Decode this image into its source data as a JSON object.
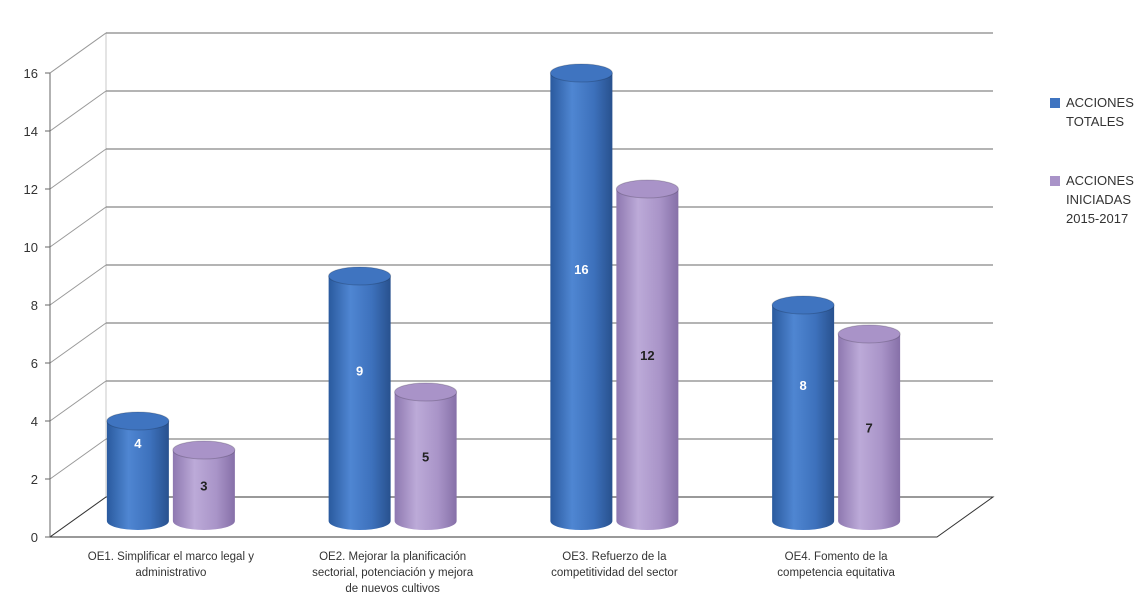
{
  "chart_data": {
    "type": "bar",
    "categories": [
      [
        "OE1. Simplificar el marco legal y",
        "administrativo"
      ],
      [
        "OE2. Mejorar la planificación",
        "sectorial, potenciación y mejora",
        "de nuevos cultivos"
      ],
      [
        "OE3. Refuerzo de la",
        "competitividad del sector"
      ],
      [
        "OE4. Fomento de la",
        "competencia equitativa"
      ]
    ],
    "series": [
      {
        "name": [
          "ACCIONES",
          "TOTALES"
        ],
        "values": [
          4,
          9,
          16,
          8
        ],
        "color": "#3f74c0"
      },
      {
        "name": [
          "ACCIONES",
          "INICIADAS",
          "2015-2017"
        ],
        "values": [
          3,
          5,
          12,
          7
        ],
        "color": "#a993c8"
      }
    ],
    "ylim": [
      0,
      16
    ],
    "yticks": [
      0,
      2,
      4,
      6,
      8,
      10,
      12,
      14,
      16
    ],
    "grid": true,
    "three_d": true,
    "legend": "right",
    "data_labels": true
  }
}
